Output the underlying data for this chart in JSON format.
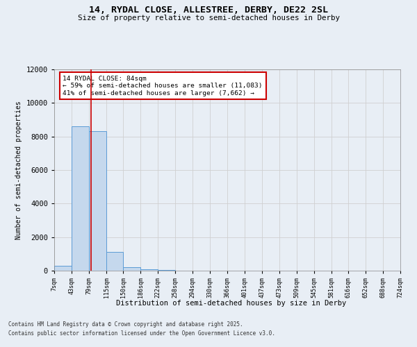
{
  "title_line1": "14, RYDAL CLOSE, ALLESTREE, DERBY, DE22 2SL",
  "title_line2": "Size of property relative to semi-detached houses in Derby",
  "xlabel": "Distribution of semi-detached houses by size in Derby",
  "ylabel": "Number of semi-detached properties",
  "footer_line1": "Contains HM Land Registry data © Crown copyright and database right 2025.",
  "footer_line2": "Contains public sector information licensed under the Open Government Licence v3.0.",
  "annotation_title": "14 RYDAL CLOSE: 84sqm",
  "annotation_line1": "← 59% of semi-detached houses are smaller (11,083)",
  "annotation_line2": "41% of semi-detached houses are larger (7,662) →",
  "property_size": 84,
  "bin_edges": [
    7,
    43,
    79,
    115,
    150,
    186,
    222,
    258,
    294,
    330,
    366,
    401,
    437,
    473,
    509,
    545,
    581,
    616,
    652,
    688,
    724
  ],
  "bar_heights": [
    300,
    8600,
    8300,
    1100,
    200,
    100,
    50,
    0,
    0,
    0,
    0,
    0,
    0,
    0,
    0,
    0,
    0,
    0,
    0,
    0
  ],
  "bar_color": "#c5d8ed",
  "bar_edge_color": "#5b9bd5",
  "red_line_color": "#cc0000",
  "grid_color": "#d0d0d0",
  "background_color": "#e8eef5",
  "ylim": [
    0,
    12000
  ],
  "yticks": [
    0,
    2000,
    4000,
    6000,
    8000,
    10000,
    12000
  ],
  "annotation_box_color": "#ffffff",
  "annotation_box_edge": "#cc0000"
}
